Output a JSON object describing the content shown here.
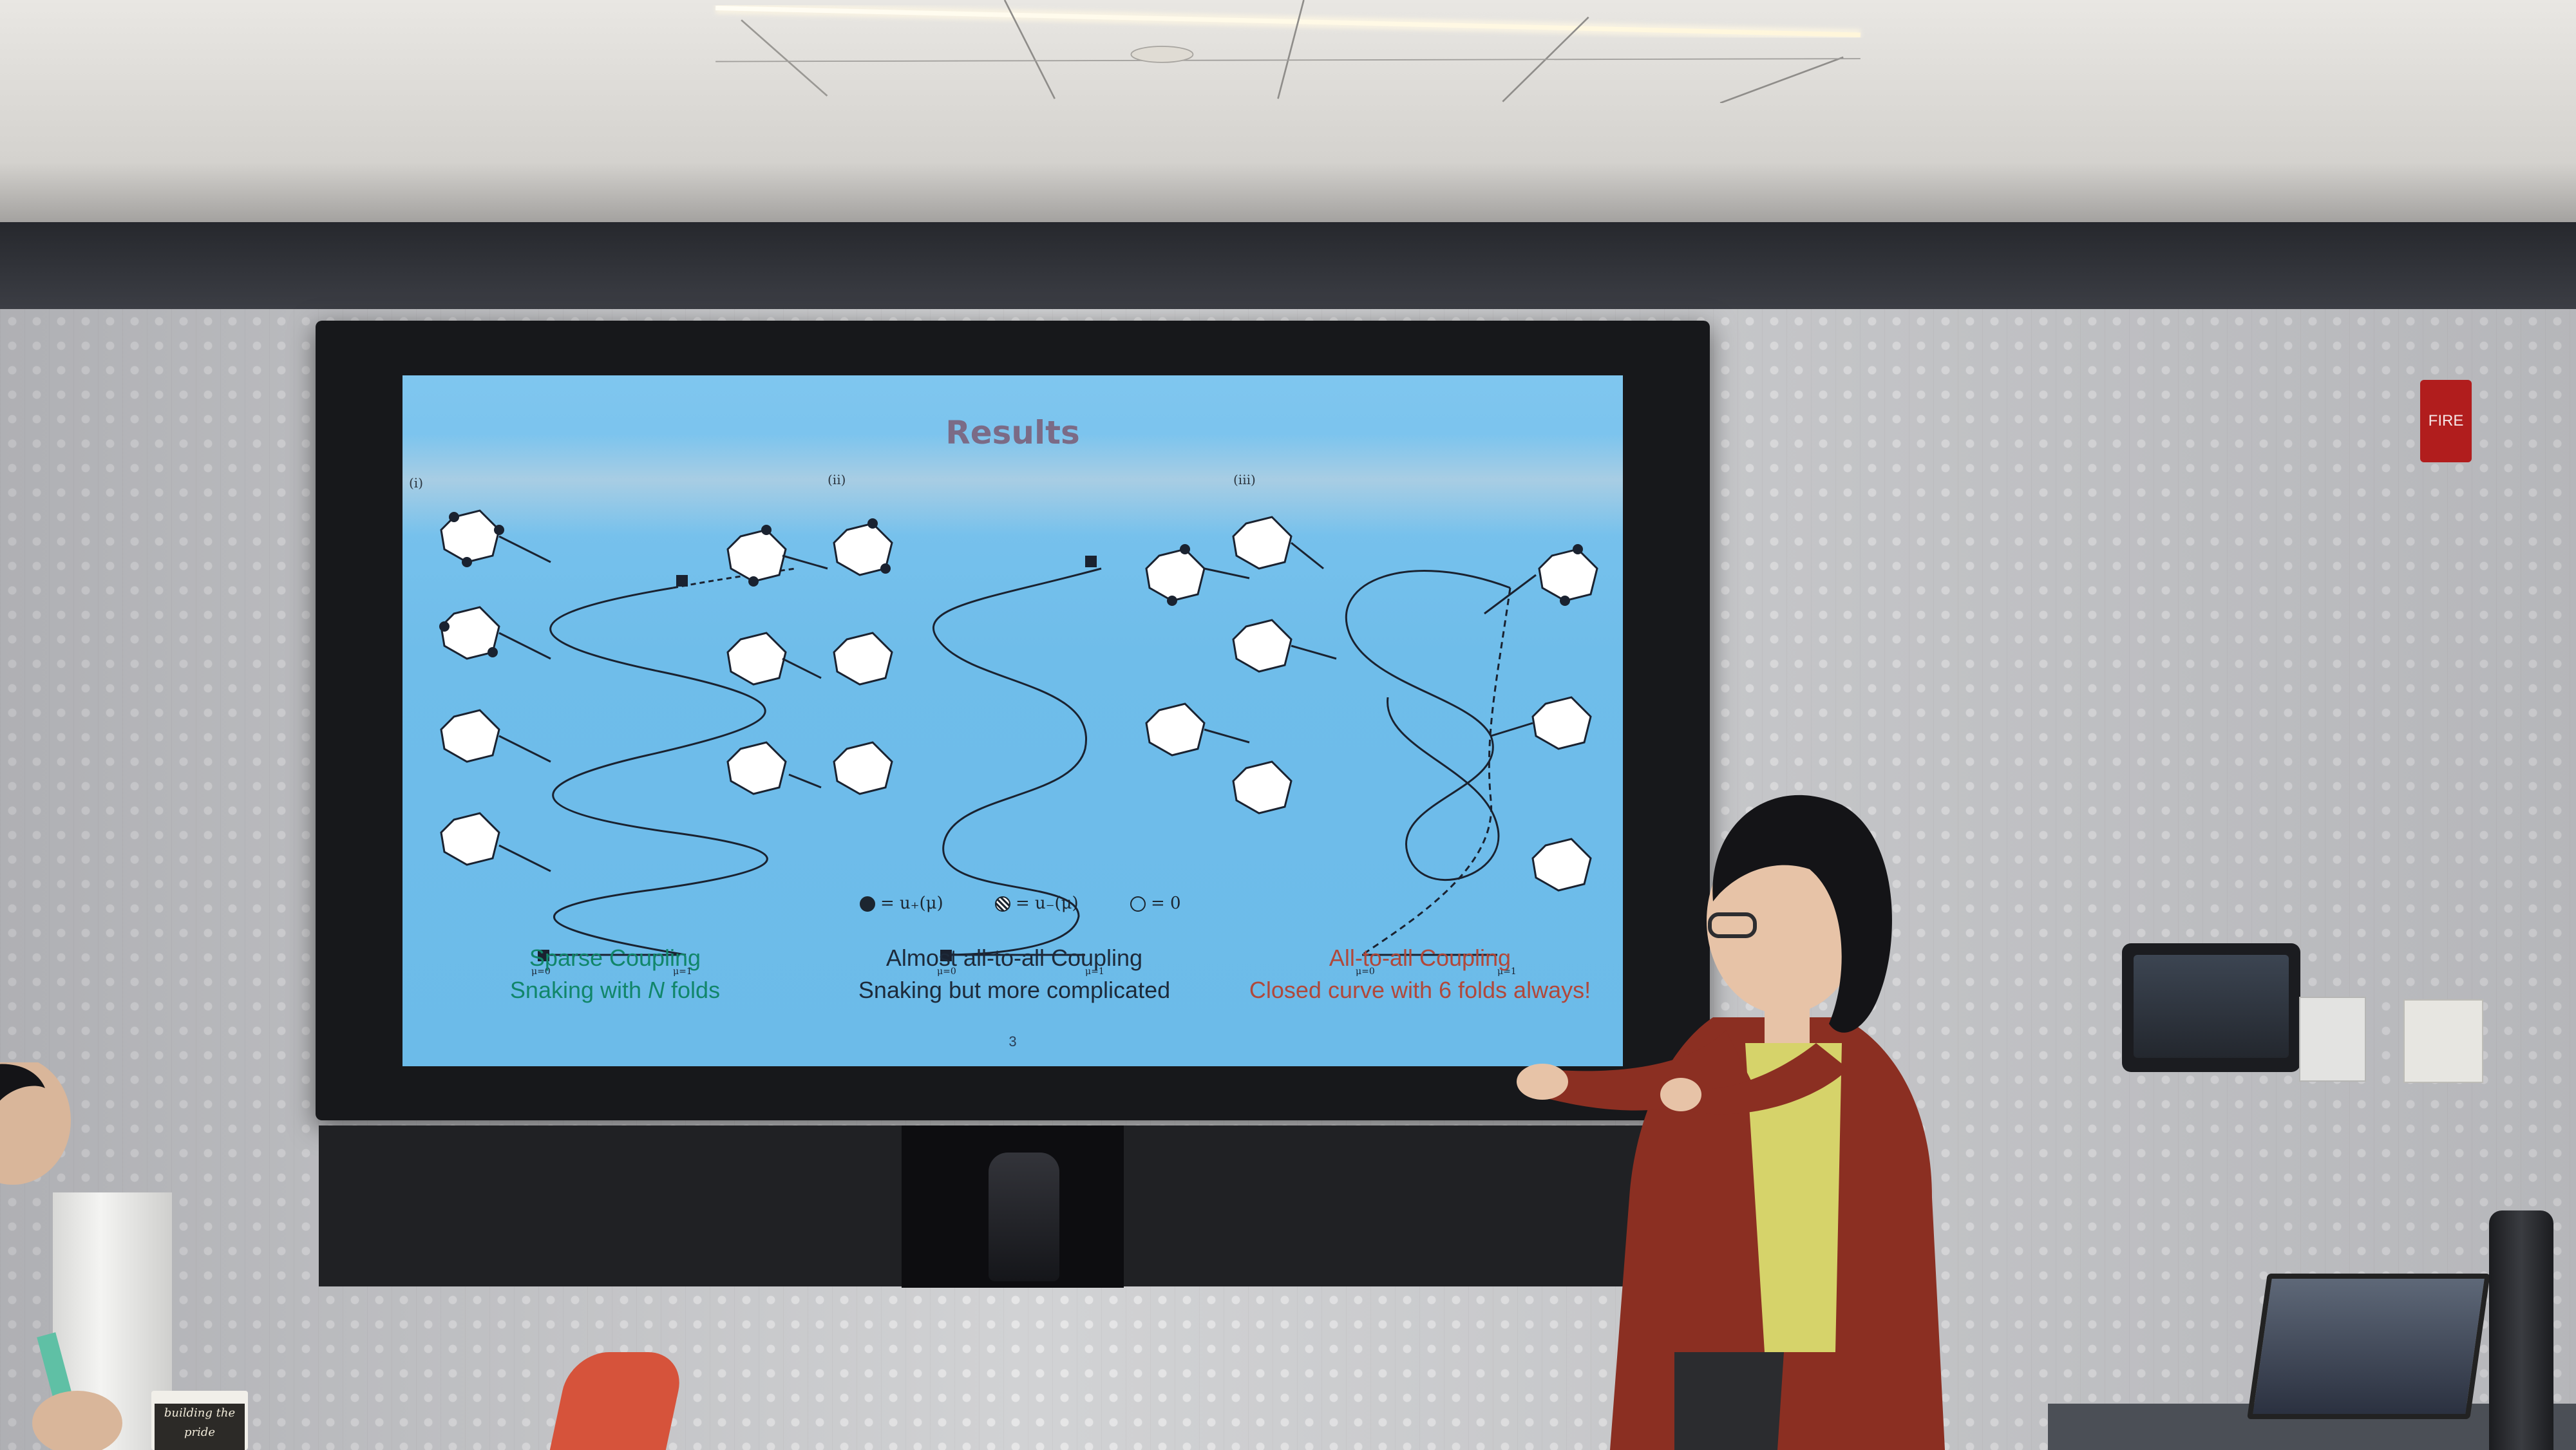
{
  "slide": {
    "title": "Results",
    "panels": [
      {
        "label": "(i)",
        "caption_line1": "Sparse Coupling",
        "caption_line2_prefix": "Snaking with ",
        "caption_line2_italic": "N",
        "caption_line2_suffix": " folds",
        "axis_left": "μ=0",
        "axis_right": "μ=1"
      },
      {
        "label": "(ii)",
        "caption_line1": "Almost all-to-all Coupling",
        "caption_line2": "Snaking but more complicated",
        "axis_left": "μ=0",
        "axis_right": "μ=1"
      },
      {
        "label": "(iii)",
        "caption_line1": "All-to-all Coupling",
        "caption_line2": "Closed curve with 6 folds always!",
        "axis_left": "μ=0",
        "axis_right": "μ=1"
      }
    ],
    "legend": [
      {
        "symbol": "filled-dot",
        "text": "= u₊(μ)"
      },
      {
        "symbol": "hatched-dot",
        "text": "= u₋(μ)"
      },
      {
        "symbol": "empty-dot",
        "text": "= 0"
      }
    ],
    "page_number": "3",
    "colors": {
      "caption_green": "#11866a",
      "caption_dark": "#1d2a3a",
      "caption_red": "#b1483a",
      "title": "#7b6b86"
    }
  },
  "room": {
    "fire_alarm_label": "FIRE",
    "cup_text": "building the pride"
  }
}
